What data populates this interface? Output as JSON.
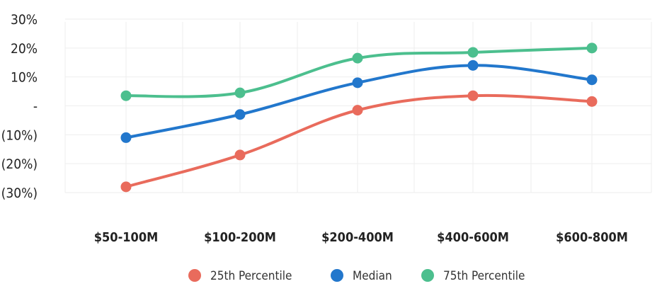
{
  "chart_data": {
    "type": "line",
    "title": "",
    "xlabel": "",
    "ylabel": "",
    "categories": [
      "$50-100M",
      "$100-200M",
      "$200-400M",
      "$400-600M",
      "$600-800M"
    ],
    "ylim": [
      -30,
      30
    ],
    "y_ticks": [
      {
        "value": 30,
        "label": "30%"
      },
      {
        "value": 20,
        "label": "20%"
      },
      {
        "value": 10,
        "label": "10%"
      },
      {
        "value": 0,
        "label": "-"
      },
      {
        "value": -10,
        "label": "(10%)"
      },
      {
        "value": -20,
        "label": "(20%)"
      },
      {
        "value": -30,
        "label": "(30%)"
      }
    ],
    "grid": true,
    "legend_position": "bottom",
    "series": [
      {
        "name": "25th Percentile",
        "color": "#e96b5c",
        "values": [
          -28,
          -17,
          -1.5,
          3.5,
          1.5
        ]
      },
      {
        "name": "Median",
        "color": "#2277cc",
        "values": [
          -11,
          -3,
          8,
          14,
          9
        ]
      },
      {
        "name": "75th Percentile",
        "color": "#4cbf8e",
        "values": [
          3.5,
          4.5,
          16.5,
          18.5,
          20
        ]
      }
    ]
  }
}
